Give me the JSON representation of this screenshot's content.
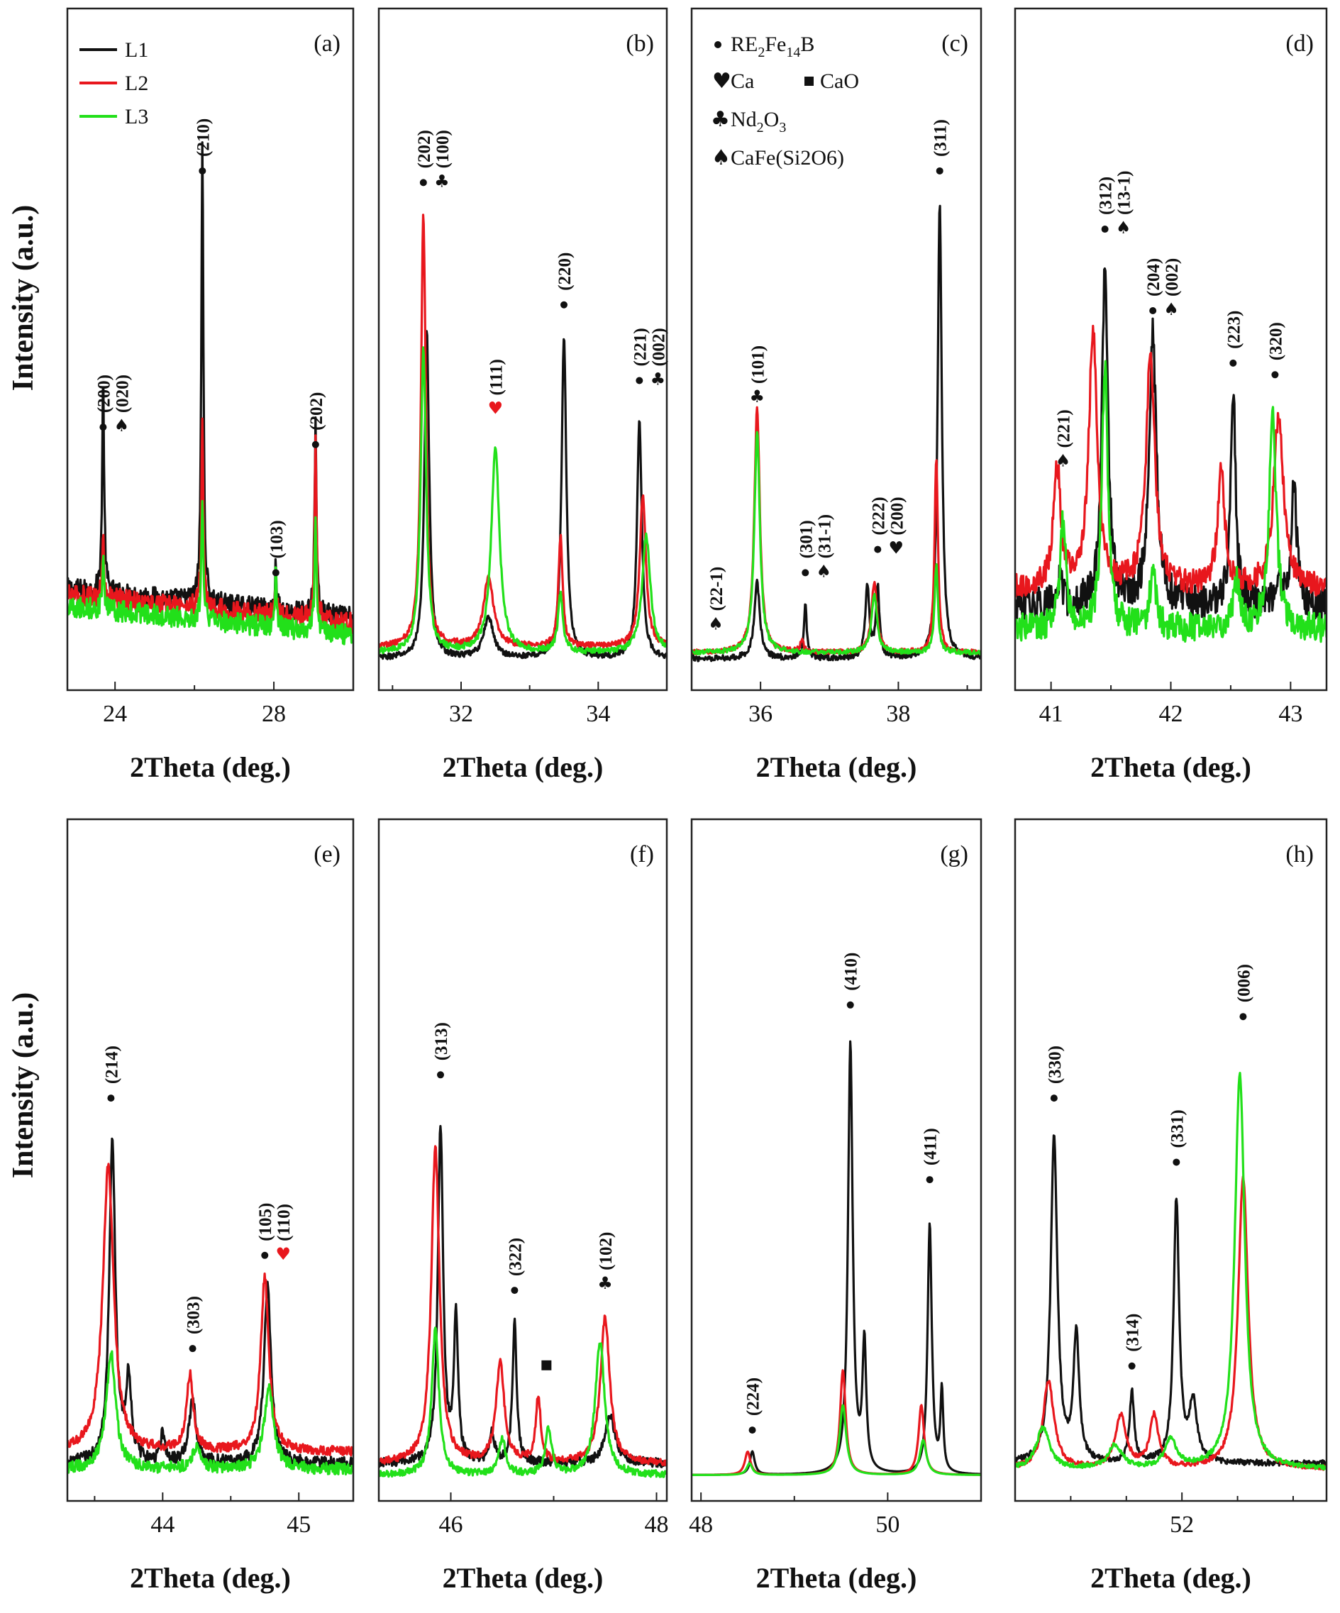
{
  "ylabel": "Intensity (a.u.)",
  "xlabel": "2Theta (deg.)",
  "colors": {
    "L1": "#111111",
    "L2": "#e8171d",
    "L3": "#22e01a"
  },
  "legend": [
    {
      "name": "L1",
      "color": "#111111"
    },
    {
      "name": "L2",
      "color": "#e8171d"
    },
    {
      "name": "L3",
      "color": "#22e01a"
    }
  ],
  "phase_legend": [
    {
      "symbol": "dot",
      "text": "RE",
      "sub1": "2",
      "text2": "Fe",
      "sub2": "14",
      "text3": "B"
    },
    {
      "symbol": "heart",
      "text": "Ca"
    },
    {
      "symbol": "square",
      "text": "CaO"
    },
    {
      "symbol": "club",
      "text": "Nd",
      "sub1": "2",
      "text2": "O",
      "sub2": "3"
    },
    {
      "symbol": "spade",
      "text": "CaFe(Si2O6)"
    }
  ],
  "chart_data": [
    {
      "id": "a",
      "type": "line",
      "label": "(a)",
      "xlim": [
        22.8,
        30.0
      ],
      "ticks": [
        24,
        28
      ],
      "ylim": [
        0,
        1
      ],
      "series": [
        {
          "name": "L1",
          "baseline": 0.1,
          "noise": 0.018,
          "peaks": [
            [
              23.7,
              0.36,
              0.05
            ],
            [
              26.2,
              0.8,
              0.05
            ],
            [
              28.05,
              0.08,
              0.04
            ],
            [
              29.05,
              0.32,
              0.05
            ]
          ]
        },
        {
          "name": "L2",
          "baseline": 0.09,
          "noise": 0.018,
          "peaks": [
            [
              23.7,
              0.1,
              0.05
            ],
            [
              26.2,
              0.32,
              0.05
            ],
            [
              28.05,
              0.06,
              0.04
            ],
            [
              29.05,
              0.3,
              0.05
            ]
          ]
        },
        {
          "name": "L3",
          "baseline": 0.07,
          "noise": 0.018,
          "peaks": [
            [
              23.7,
              0.08,
              0.05
            ],
            [
              26.2,
              0.22,
              0.05
            ],
            [
              28.05,
              0.1,
              0.04
            ],
            [
              29.05,
              0.18,
              0.05
            ]
          ]
        }
      ],
      "annotations": [
        {
          "x": 23.7,
          "y": 0.42,
          "text": "(200)"
        },
        {
          "x": 23.7,
          "y": 0.42,
          "offset": 1,
          "sym": "spade",
          "text": "(020)"
        },
        {
          "x": 26.2,
          "y": 0.86,
          "text": "(210)"
        },
        {
          "x": 28.05,
          "y": 0.17,
          "text": "(103)"
        },
        {
          "x": 29.05,
          "y": 0.39,
          "text": "(202)"
        }
      ]
    },
    {
      "id": "b",
      "type": "line",
      "label": "(b)",
      "xlim": [
        30.8,
        35.0
      ],
      "ticks": [
        32,
        34
      ],
      "ylim": [
        0,
        1
      ],
      "series": [
        {
          "name": "L1",
          "baseline": 0.03,
          "noise": 0.005,
          "peaks": [
            [
              31.5,
              0.56,
              0.07
            ],
            [
              32.4,
              0.07,
              0.14
            ],
            [
              33.5,
              0.55,
              0.07
            ],
            [
              34.6,
              0.41,
              0.07
            ]
          ]
        },
        {
          "name": "L2",
          "baseline": 0.05,
          "noise": 0.005,
          "peaks": [
            [
              31.45,
              0.74,
              0.07
            ],
            [
              32.4,
              0.12,
              0.14
            ],
            [
              33.45,
              0.19,
              0.06
            ],
            [
              34.65,
              0.26,
              0.09
            ]
          ]
        },
        {
          "name": "L3",
          "baseline": 0.04,
          "noise": 0.005,
          "peaks": [
            [
              31.45,
              0.52,
              0.08
            ],
            [
              32.5,
              0.35,
              0.12
            ],
            [
              33.45,
              0.1,
              0.07
            ],
            [
              34.7,
              0.2,
              0.12
            ]
          ]
        }
      ],
      "annotations": [
        {
          "x": 31.45,
          "y": 0.84,
          "text": "(202)"
        },
        {
          "x": 31.45,
          "y": 0.84,
          "offset": 1,
          "sym": "club",
          "text": "(100)"
        },
        {
          "x": 32.5,
          "y": 0.45,
          "sym": "heart",
          "text": "(111)",
          "red": true
        },
        {
          "x": 33.5,
          "y": 0.63,
          "text": "(220)"
        },
        {
          "x": 34.6,
          "y": 0.5,
          "text": "(221)"
        },
        {
          "x": 34.6,
          "y": 0.5,
          "offset": 1,
          "sym": "club",
          "text": "(002)"
        }
      ]
    },
    {
      "id": "c",
      "type": "line",
      "label": "(c)",
      "xlim": [
        35.0,
        39.2
      ],
      "ticks": [
        36,
        38
      ],
      "ylim": [
        0,
        1
      ],
      "series": [
        {
          "name": "L1",
          "baseline": 0.03,
          "noise": 0.005,
          "peaks": [
            [
              35.95,
              0.13,
              0.08
            ],
            [
              36.65,
              0.09,
              0.04
            ],
            [
              37.55,
              0.12,
              0.06
            ],
            [
              37.7,
              0.12,
              0.05
            ],
            [
              38.6,
              0.78,
              0.06
            ]
          ]
        },
        {
          "name": "L2",
          "baseline": 0.04,
          "noise": 0.004,
          "peaks": [
            [
              35.95,
              0.42,
              0.08
            ],
            [
              36.6,
              0.02,
              0.05
            ],
            [
              37.65,
              0.12,
              0.08
            ],
            [
              38.55,
              0.33,
              0.05
            ]
          ]
        },
        {
          "name": "L3",
          "baseline": 0.04,
          "noise": 0.004,
          "peaks": [
            [
              35.95,
              0.38,
              0.08
            ],
            [
              37.65,
              0.1,
              0.08
            ],
            [
              38.55,
              0.15,
              0.05
            ]
          ]
        }
      ],
      "annotations": [
        {
          "x": 35.35,
          "y": 0.08,
          "sym": "spade",
          "text": "(22-1)",
          "symonly": true
        },
        {
          "x": 35.95,
          "y": 0.47,
          "sym": "club",
          "text": "(101)"
        },
        {
          "x": 36.65,
          "y": 0.17,
          "text": "(301)"
        },
        {
          "x": 36.65,
          "y": 0.17,
          "offset": 1,
          "sym": "spade",
          "text": "(31-1)"
        },
        {
          "x": 37.7,
          "y": 0.21,
          "text": "(222)"
        },
        {
          "x": 37.7,
          "y": 0.21,
          "offset": 1,
          "sym": "heart",
          "text": "(200)"
        },
        {
          "x": 38.6,
          "y": 0.86,
          "text": "(311)"
        }
      ]
    },
    {
      "id": "d",
      "type": "line",
      "label": "(d)",
      "xlim": [
        40.7,
        43.3
      ],
      "ticks": [
        41,
        42,
        43
      ],
      "ylim": [
        0,
        1
      ],
      "series": [
        {
          "name": "L1",
          "baseline": 0.12,
          "noise": 0.03,
          "peaks": [
            [
              41.08,
              0.06,
              0.03
            ],
            [
              41.45,
              0.58,
              0.05
            ],
            [
              41.85,
              0.46,
              0.06
            ],
            [
              42.52,
              0.38,
              0.04
            ],
            [
              42.9,
              0.06,
              0.04
            ],
            [
              43.03,
              0.22,
              0.04
            ]
          ]
        },
        {
          "name": "L2",
          "baseline": 0.15,
          "noise": 0.02,
          "peaks": [
            [
              41.05,
              0.21,
              0.06
            ],
            [
              41.35,
              0.44,
              0.07
            ],
            [
              41.83,
              0.41,
              0.07
            ],
            [
              42.42,
              0.2,
              0.06
            ],
            [
              42.9,
              0.3,
              0.08
            ]
          ]
        },
        {
          "name": "L3",
          "baseline": 0.08,
          "noise": 0.025,
          "peaks": [
            [
              41.1,
              0.18,
              0.05
            ],
            [
              41.45,
              0.45,
              0.05
            ],
            [
              41.85,
              0.1,
              0.05
            ],
            [
              42.55,
              0.08,
              0.06
            ],
            [
              42.85,
              0.37,
              0.06
            ]
          ]
        }
      ],
      "annotations": [
        {
          "x": 41.1,
          "y": 0.36,
          "sym": "spade",
          "text": "(221)"
        },
        {
          "x": 41.45,
          "y": 0.76,
          "text": "(312)"
        },
        {
          "x": 41.45,
          "y": 0.76,
          "offset": 1,
          "sym": "spade",
          "text": "(13-1)"
        },
        {
          "x": 41.85,
          "y": 0.62,
          "text": "(204)"
        },
        {
          "x": 41.85,
          "y": 0.62,
          "offset": 1,
          "sym": "spade",
          "text": "(002)"
        },
        {
          "x": 42.52,
          "y": 0.53,
          "text": "(223)"
        },
        {
          "x": 42.87,
          "y": 0.51,
          "text": "(320)"
        }
      ]
    },
    {
      "id": "e",
      "type": "line",
      "label": "(e)",
      "xlim": [
        43.3,
        45.4
      ],
      "ticks": [
        44,
        45
      ],
      "ylim": [
        0,
        1
      ],
      "series": [
        {
          "name": "L1",
          "baseline": 0.04,
          "noise": 0.01,
          "peaks": [
            [
              43.63,
              0.55,
              0.045
            ],
            [
              43.75,
              0.14,
              0.04
            ],
            [
              44.0,
              0.05,
              0.03
            ],
            [
              44.22,
              0.11,
              0.05
            ],
            [
              44.77,
              0.31,
              0.05
            ]
          ]
        },
        {
          "name": "L2",
          "baseline": 0.06,
          "noise": 0.008,
          "peaks": [
            [
              43.6,
              0.49,
              0.08
            ],
            [
              44.2,
              0.13,
              0.05
            ],
            [
              44.75,
              0.3,
              0.06
            ]
          ]
        },
        {
          "name": "L3",
          "baseline": 0.03,
          "noise": 0.01,
          "peaks": [
            [
              43.62,
              0.2,
              0.07
            ],
            [
              44.25,
              0.04,
              0.06
            ],
            [
              44.78,
              0.14,
              0.07
            ]
          ]
        }
      ],
      "annotations": [
        {
          "x": 43.62,
          "y": 0.66,
          "text": "(214)"
        },
        {
          "x": 44.22,
          "y": 0.23,
          "text": "(303)"
        },
        {
          "x": 44.75,
          "y": 0.39,
          "text": "(105)"
        },
        {
          "x": 44.75,
          "y": 0.39,
          "offset": 1,
          "sym": "heart",
          "text": "(110)",
          "red": true
        }
      ]
    },
    {
      "id": "f",
      "type": "line",
      "label": "(f)",
      "xlim": [
        45.3,
        48.1
      ],
      "ticks": [
        46,
        48
      ],
      "ylim": [
        0,
        1
      ],
      "series": [
        {
          "name": "L1",
          "baseline": 0.04,
          "noise": 0.008,
          "peaks": [
            [
              45.9,
              0.58,
              0.05
            ],
            [
              46.05,
              0.25,
              0.04
            ],
            [
              46.62,
              0.24,
              0.04
            ],
            [
              46.4,
              0.05,
              0.05
            ],
            [
              47.55,
              0.08,
              0.1
            ]
          ]
        },
        {
          "name": "L2",
          "baseline": 0.04,
          "noise": 0.006,
          "peaks": [
            [
              45.85,
              0.54,
              0.08
            ],
            [
              46.48,
              0.17,
              0.08
            ],
            [
              46.85,
              0.11,
              0.05
            ],
            [
              47.5,
              0.25,
              0.09
            ]
          ]
        },
        {
          "name": "L3",
          "baseline": 0.02,
          "noise": 0.006,
          "peaks": [
            [
              45.85,
              0.25,
              0.07
            ],
            [
              46.5,
              0.06,
              0.07
            ],
            [
              46.95,
              0.08,
              0.06
            ],
            [
              47.45,
              0.23,
              0.09
            ]
          ]
        }
      ],
      "annotations": [
        {
          "x": 45.9,
          "y": 0.7,
          "text": "(313)"
        },
        {
          "x": 46.62,
          "y": 0.33,
          "text": "(322)"
        },
        {
          "x": 46.93,
          "y": 0.2,
          "sym": "square",
          "text": "",
          "symonly": true
        },
        {
          "x": 47.5,
          "y": 0.34,
          "sym": "club",
          "text": "(102)"
        }
      ]
    },
    {
      "id": "g",
      "type": "line",
      "label": "(g)",
      "xlim": [
        47.9,
        51.0
      ],
      "ticks": [
        48,
        50
      ],
      "ylim": [
        0,
        1
      ],
      "series": [
        {
          "name": "L1",
          "baseline": 0.02,
          "noise": 0.0,
          "peaks": [
            [
              48.55,
              0.04,
              0.05
            ],
            [
              49.6,
              0.74,
              0.05
            ],
            [
              49.75,
              0.22,
              0.04
            ],
            [
              50.45,
              0.43,
              0.045
            ],
            [
              50.58,
              0.14,
              0.03
            ]
          ]
        },
        {
          "name": "L2",
          "baseline": 0.02,
          "noise": 0.0,
          "peaks": [
            [
              48.5,
              0.04,
              0.06
            ],
            [
              49.52,
              0.18,
              0.06
            ],
            [
              50.36,
              0.12,
              0.06
            ]
          ]
        },
        {
          "name": "L3",
          "baseline": 0.02,
          "noise": 0.0,
          "peaks": [
            [
              48.52,
              0.02,
              0.06
            ],
            [
              49.52,
              0.12,
              0.07
            ],
            [
              50.38,
              0.06,
              0.07
            ]
          ]
        }
      ],
      "annotations": [
        {
          "x": 48.55,
          "y": 0.09,
          "text": "(224)"
        },
        {
          "x": 49.6,
          "y": 0.82,
          "text": "(410)"
        },
        {
          "x": 50.45,
          "y": 0.52,
          "text": "(411)"
        }
      ]
    },
    {
      "id": "h",
      "type": "line",
      "label": "(h)",
      "xlim": [
        50.5,
        53.3
      ],
      "ticks": [
        52
      ],
      "ylim": [
        0,
        1
      ],
      "series": [
        {
          "name": "L1",
          "baseline": 0.04,
          "noise": 0.005,
          "peaks": [
            [
              50.85,
              0.56,
              0.06
            ],
            [
              51.05,
              0.22,
              0.05
            ],
            [
              51.55,
              0.12,
              0.04
            ],
            [
              51.95,
              0.45,
              0.05
            ],
            [
              52.1,
              0.1,
              0.07
            ]
          ]
        },
        {
          "name": "L2",
          "baseline": 0.03,
          "noise": 0.004,
          "peaks": [
            [
              50.8,
              0.15,
              0.1
            ],
            [
              51.45,
              0.09,
              0.1
            ],
            [
              51.75,
              0.09,
              0.08
            ],
            [
              52.55,
              0.5,
              0.09
            ]
          ]
        },
        {
          "name": "L3",
          "baseline": 0.03,
          "noise": 0.004,
          "peaks": [
            [
              50.75,
              0.07,
              0.12
            ],
            [
              51.4,
              0.04,
              0.12
            ],
            [
              51.9,
              0.05,
              0.1
            ],
            [
              52.52,
              0.68,
              0.09
            ]
          ]
        }
      ],
      "annotations": [
        {
          "x": 50.85,
          "y": 0.66,
          "text": "(330)"
        },
        {
          "x": 51.55,
          "y": 0.2,
          "text": "(314)"
        },
        {
          "x": 51.95,
          "y": 0.55,
          "text": "(331)"
        },
        {
          "x": 52.55,
          "y": 0.8,
          "text": "(006)"
        }
      ]
    }
  ]
}
